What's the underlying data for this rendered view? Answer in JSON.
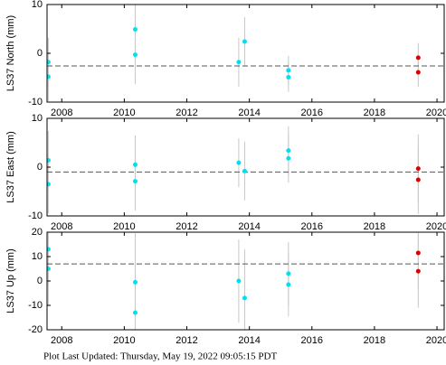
{
  "chart_data": [
    {
      "type": "scatter",
      "ylabel": "LS37 North (mm)",
      "xlim": [
        2007.53,
        2020.23
      ],
      "ylim": [
        -10,
        10
      ],
      "xticks": [
        2008,
        2010,
        2012,
        2014,
        2016,
        2018,
        2020
      ],
      "yticks": [
        -10,
        0,
        10
      ],
      "hline": -2.6,
      "series": [
        {
          "color": "#00e0ee",
          "x": [
            2007.57,
            2007.57,
            2010.35,
            2010.35,
            2013.66,
            2013.85,
            2015.25,
            2015.25
          ],
          "values": [
            -1.8,
            -4.8,
            4.9,
            -0.3,
            -1.8,
            2.4,
            -3.5,
            -4.9
          ],
          "errors": [
            5,
            5,
            6,
            6,
            5,
            5,
            3,
            3
          ]
        },
        {
          "color": "#dd0000",
          "x": [
            2019.4,
            2019.4
          ],
          "values": [
            -0.9,
            -3.9
          ],
          "errors": [
            3,
            3
          ]
        }
      ]
    },
    {
      "type": "scatter",
      "ylabel": "LS37 East (mm)",
      "xlim": [
        2007.53,
        2020.23
      ],
      "ylim": [
        -10,
        10
      ],
      "xticks": [
        2008,
        2010,
        2012,
        2014,
        2016,
        2018,
        2020
      ],
      "yticks": [
        -10,
        0,
        10
      ],
      "hline": -1.0,
      "series": [
        {
          "color": "#00e0ee",
          "x": [
            2007.57,
            2007.57,
            2010.35,
            2010.35,
            2013.66,
            2013.85,
            2015.25,
            2015.25
          ],
          "values": [
            1.4,
            -3.5,
            0.5,
            -2.9,
            0.9,
            -0.8,
            3.4,
            1.8
          ],
          "errors": [
            6,
            6,
            6,
            6,
            5,
            6,
            5,
            5
          ]
        },
        {
          "color": "#dd0000",
          "x": [
            2019.4,
            2019.4
          ],
          "values": [
            -0.3,
            -2.6
          ],
          "errors": [
            7,
            7
          ]
        }
      ]
    },
    {
      "type": "scatter",
      "ylabel": "LS37 Up (mm)",
      "xlim": [
        2007.53,
        2020.23
      ],
      "ylim": [
        -20,
        20
      ],
      "xticks": [
        2008,
        2010,
        2012,
        2014,
        2016,
        2018,
        2020
      ],
      "yticks": [
        -20,
        -10,
        0,
        10,
        20
      ],
      "hline": 7,
      "series": [
        {
          "color": "#00e0ee",
          "x": [
            2007.57,
            2007.57,
            2010.35,
            2010.35,
            2013.66,
            2013.85,
            2015.25,
            2015.25
          ],
          "values": [
            13,
            5,
            -0.5,
            -13,
            0,
            -7,
            3,
            -1.5
          ],
          "errors": [
            15,
            15,
            20,
            20,
            17,
            20,
            13,
            13
          ]
        },
        {
          "color": "#dd0000",
          "x": [
            2019.4,
            2019.4
          ],
          "values": [
            11.5,
            4
          ],
          "errors": [
            15,
            15
          ]
        }
      ]
    }
  ],
  "footer": "Plot Last Updated:   Thursday, May 19, 2022 09:05:15 PDT"
}
